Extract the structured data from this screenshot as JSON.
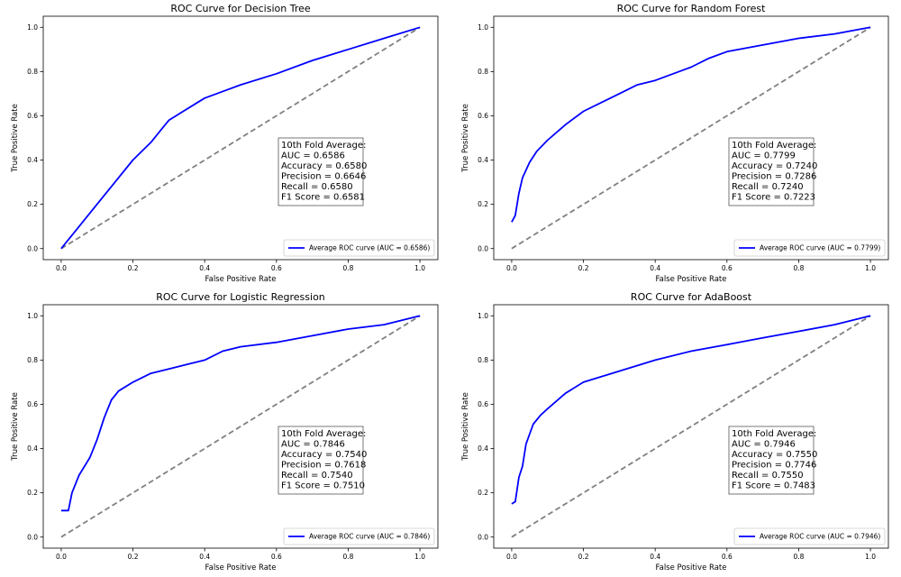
{
  "chart_data": [
    {
      "type": "line",
      "title": "ROC Curve for Decision Tree",
      "xlabel": "False Positive Rate",
      "ylabel": "True Positive Rate",
      "xlim": [
        -0.05,
        1.05
      ],
      "ylim": [
        -0.05,
        1.05
      ],
      "xticks": [
        "0.0",
        "0.2",
        "0.4",
        "0.6",
        "0.8",
        "1.0"
      ],
      "yticks": [
        "0.0",
        "0.2",
        "0.4",
        "0.6",
        "0.8",
        "1.0"
      ],
      "legend_position": "lower-right",
      "stats_position": "center-right",
      "series": [
        {
          "name": "Average ROC curve (AUC = 0.6586)",
          "color": "#0000ff",
          "style": "solid",
          "x": [
            0,
            0.05,
            0.1,
            0.15,
            0.2,
            0.25,
            0.28,
            0.3,
            0.34,
            0.38,
            0.4,
            0.5,
            0.6,
            0.7,
            0.8,
            0.9,
            1.0
          ],
          "y": [
            0,
            0.1,
            0.2,
            0.3,
            0.4,
            0.48,
            0.54,
            0.58,
            0.62,
            0.66,
            0.68,
            0.74,
            0.79,
            0.85,
            0.9,
            0.95,
            1.0
          ]
        },
        {
          "name": "",
          "color": "#808080",
          "style": "dashed",
          "x": [
            0,
            1
          ],
          "y": [
            0,
            1
          ]
        }
      ],
      "stats": [
        "10th Fold Average:",
        "AUC = 0.6586",
        "Accuracy = 0.6580",
        "Precision = 0.6646",
        "Recall = 0.6580",
        "F1 Score = 0.6581"
      ]
    },
    {
      "type": "line",
      "title": "ROC Curve for Random Forest",
      "xlabel": "False Positive Rate",
      "ylabel": "True Positive Rate",
      "xlim": [
        -0.05,
        1.05
      ],
      "ylim": [
        -0.05,
        1.05
      ],
      "xticks": [
        "0.0",
        "0.2",
        "0.4",
        "0.6",
        "0.8",
        "1.0"
      ],
      "yticks": [
        "0.0",
        "0.2",
        "0.4",
        "0.6",
        "0.8",
        "1.0"
      ],
      "legend_position": "lower-right",
      "stats_position": "center-right",
      "series": [
        {
          "name": "Average ROC curve (AUC = 0.7799)",
          "color": "#0000ff",
          "style": "solid",
          "x": [
            0,
            0.01,
            0.02,
            0.03,
            0.05,
            0.07,
            0.1,
            0.15,
            0.2,
            0.25,
            0.3,
            0.35,
            0.4,
            0.45,
            0.5,
            0.55,
            0.6,
            0.7,
            0.8,
            0.9,
            1.0
          ],
          "y": [
            0.12,
            0.15,
            0.25,
            0.32,
            0.39,
            0.44,
            0.49,
            0.56,
            0.62,
            0.66,
            0.7,
            0.74,
            0.76,
            0.79,
            0.82,
            0.86,
            0.89,
            0.92,
            0.95,
            0.97,
            1.0
          ]
        },
        {
          "name": "",
          "color": "#808080",
          "style": "dashed",
          "x": [
            0,
            1
          ],
          "y": [
            0,
            1
          ]
        }
      ],
      "stats": [
        "10th Fold Average:",
        "AUC = 0.7799",
        "Accuracy = 0.7240",
        "Precision = 0.7286",
        "Recall = 0.7240",
        "F1 Score = 0.7223"
      ]
    },
    {
      "type": "line",
      "title": "ROC Curve for Logistic Regression",
      "xlabel": "False Positive Rate",
      "ylabel": "True Positive Rate",
      "xlim": [
        -0.05,
        1.05
      ],
      "ylim": [
        -0.05,
        1.05
      ],
      "xticks": [
        "0.0",
        "0.2",
        "0.4",
        "0.6",
        "0.8",
        "1.0"
      ],
      "yticks": [
        "0.0",
        "0.2",
        "0.4",
        "0.6",
        "0.8",
        "1.0"
      ],
      "legend_position": "lower-right",
      "stats_position": "center-right",
      "series": [
        {
          "name": "Average ROC curve (AUC = 0.7846)",
          "color": "#0000ff",
          "style": "solid",
          "x": [
            0,
            0.02,
            0.03,
            0.05,
            0.08,
            0.1,
            0.12,
            0.14,
            0.16,
            0.2,
            0.25,
            0.3,
            0.35,
            0.4,
            0.45,
            0.5,
            0.6,
            0.7,
            0.8,
            0.9,
            1.0
          ],
          "y": [
            0.12,
            0.12,
            0.2,
            0.28,
            0.36,
            0.44,
            0.54,
            0.62,
            0.66,
            0.7,
            0.74,
            0.76,
            0.78,
            0.8,
            0.84,
            0.86,
            0.88,
            0.91,
            0.94,
            0.96,
            1.0
          ]
        },
        {
          "name": "",
          "color": "#808080",
          "style": "dashed",
          "x": [
            0,
            1
          ],
          "y": [
            0,
            1
          ]
        }
      ],
      "stats": [
        "10th Fold Average:",
        "AUC = 0.7846",
        "Accuracy = 0.7540",
        "Precision = 0.7618",
        "Recall = 0.7540",
        "F1 Score = 0.7510"
      ]
    },
    {
      "type": "line",
      "title": "ROC Curve for AdaBoost",
      "xlabel": "False Positive Rate",
      "ylabel": "True Positive Rate",
      "xlim": [
        -0.05,
        1.05
      ],
      "ylim": [
        -0.05,
        1.05
      ],
      "xticks": [
        "0.0",
        "0.2",
        "0.4",
        "0.6",
        "0.8",
        "1.0"
      ],
      "yticks": [
        "0.0",
        "0.2",
        "0.4",
        "0.6",
        "0.8",
        "1.0"
      ],
      "legend_position": "lower-right",
      "stats_position": "center-right",
      "series": [
        {
          "name": "Average ROC curve (AUC = 0.7946)",
          "color": "#0000ff",
          "style": "solid",
          "x": [
            0,
            0.01,
            0.02,
            0.03,
            0.04,
            0.06,
            0.08,
            0.1,
            0.15,
            0.2,
            0.3,
            0.4,
            0.5,
            0.6,
            0.7,
            0.8,
            0.9,
            1.0
          ],
          "y": [
            0.15,
            0.16,
            0.27,
            0.32,
            0.42,
            0.51,
            0.55,
            0.58,
            0.65,
            0.7,
            0.75,
            0.8,
            0.84,
            0.87,
            0.9,
            0.93,
            0.96,
            1.0
          ]
        },
        {
          "name": "",
          "color": "#808080",
          "style": "dashed",
          "x": [
            0,
            1
          ],
          "y": [
            0,
            1
          ]
        }
      ],
      "stats": [
        "10th Fold Average:",
        "AUC = 0.7946",
        "Accuracy = 0.7550",
        "Precision = 0.7746",
        "Recall = 0.7550",
        "F1 Score = 0.7483"
      ]
    }
  ]
}
